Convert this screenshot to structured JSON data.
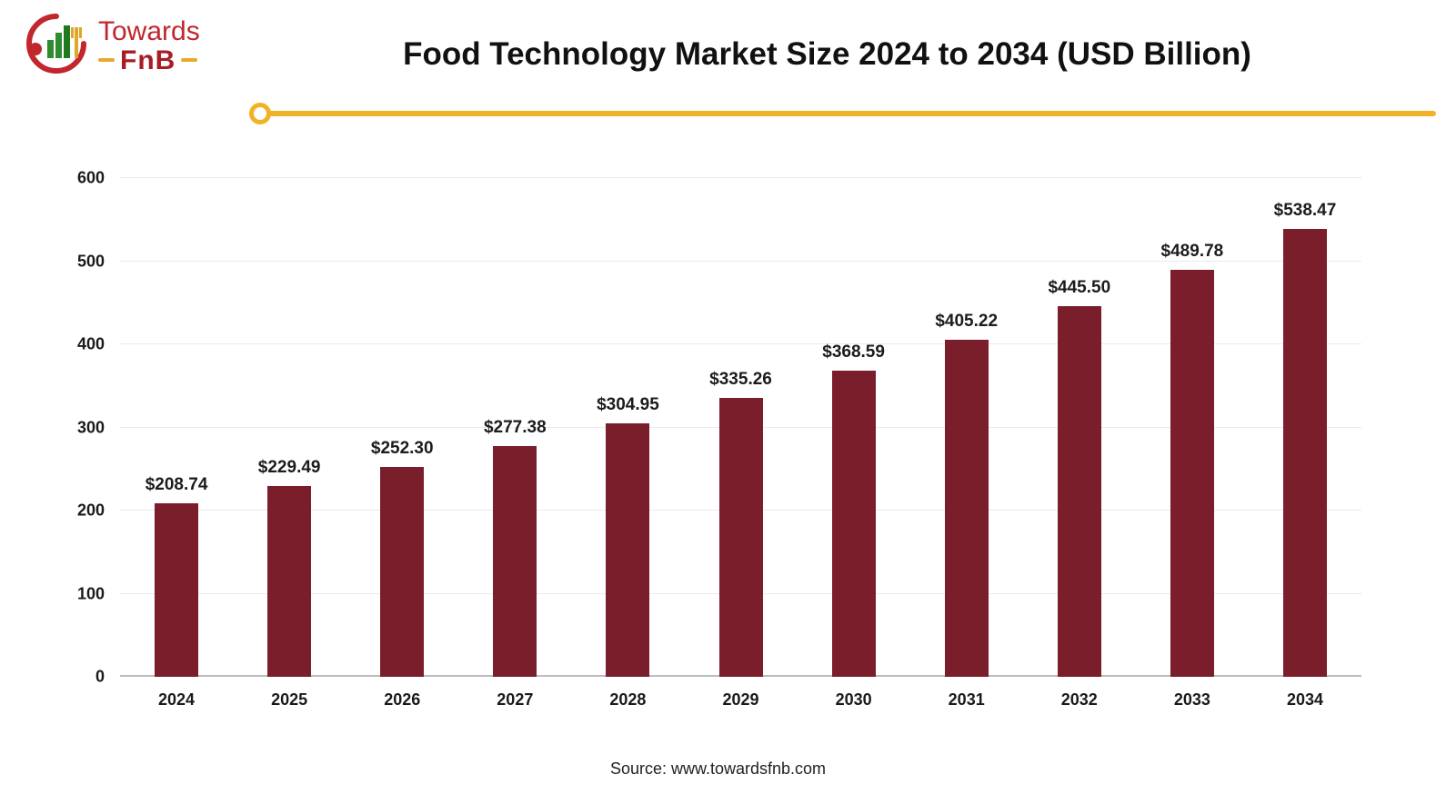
{
  "brand": {
    "line1": "Towards",
    "line2": "FnB"
  },
  "header": {
    "title": "Food Technology Market Size 2024 to 2034 (USD Billion)"
  },
  "footer": {
    "source": "Source: www.towardsfnb.com"
  },
  "colors": {
    "bar": "#7b1e2b",
    "accent": "#f2b228",
    "brand_red": "#c1272d",
    "brand_green": "#2e8b2e"
  },
  "chart_data": {
    "type": "bar",
    "title": "Food Technology Market Size 2024 to 2034 (USD Billion)",
    "categories": [
      "2024",
      "2025",
      "2026",
      "2027",
      "2028",
      "2029",
      "2030",
      "2031",
      "2032",
      "2033",
      "2034"
    ],
    "values": [
      208.74,
      229.49,
      252.3,
      277.38,
      304.95,
      335.26,
      368.59,
      405.22,
      445.5,
      489.78,
      538.47
    ],
    "data_labels": [
      "$208.74",
      "$229.49",
      "$252.30",
      "$277.38",
      "$304.95",
      "$335.26",
      "$368.59",
      "$405.22",
      "$445.50",
      "$489.78",
      "$538.47"
    ],
    "xlabel": "",
    "ylabel": "",
    "ylim": [
      0,
      600
    ],
    "ytick_step": 100,
    "grid": true,
    "legend": "none",
    "bar_color": "#7b1e2b",
    "source": "Source: www.towardsfnb.com"
  }
}
